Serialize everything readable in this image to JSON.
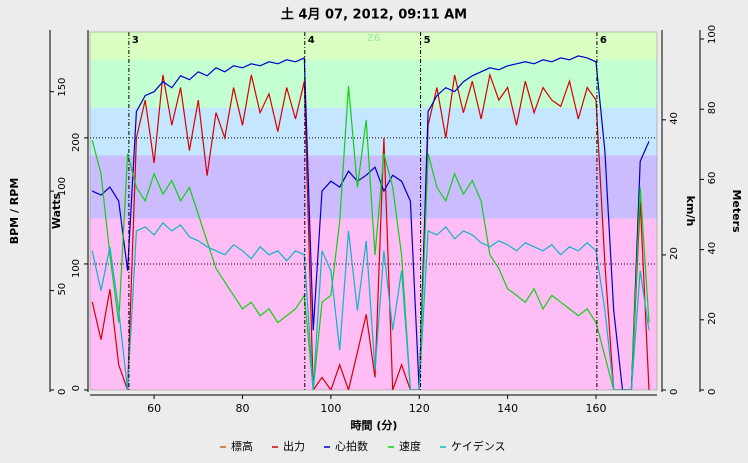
{
  "chart_data": {
    "type": "line",
    "title": "土 4月 07, 2012, 09:11 AM",
    "xlabel": "時間 (分)",
    "xlim": [
      45.5,
      173.8
    ],
    "xticks": [
      60,
      80,
      100,
      120,
      140,
      160
    ],
    "axes": [
      {
        "label": "BPM / RPM",
        "side": "left",
        "ylim": [
          0,
          180
        ],
        "yticks": [
          0,
          50,
          100,
          150
        ]
      },
      {
        "label": "Watts",
        "side": "left",
        "ylim": [
          0,
          284
        ],
        "yticks": [
          0,
          100,
          200
        ]
      },
      {
        "label": "km/h",
        "side": "right",
        "ylim": [
          0,
          53
        ],
        "yticks": [
          0,
          20,
          40
        ]
      },
      {
        "label": "Meters",
        "side": "right",
        "ylim": [
          0,
          102
        ],
        "yticks": [
          0,
          20,
          40,
          60,
          80,
          100
        ]
      }
    ],
    "zones": {
      "axis": 1,
      "label": "Z6",
      "bands": [
        {
          "from": 0,
          "to": 136,
          "color": "#ffbdf5"
        },
        {
          "from": 136,
          "to": 186,
          "color": "#cbbcff"
        },
        {
          "from": 186,
          "to": 224,
          "color": "#c4e6ff"
        },
        {
          "from": 224,
          "to": 262,
          "color": "#c4ffd2"
        },
        {
          "from": 262,
          "to": 284,
          "color": "#d9ffc2"
        }
      ]
    },
    "reference_lines": [
      {
        "axis": 1,
        "value": 100
      },
      {
        "axis": 1,
        "value": 200
      }
    ],
    "intervals": [
      {
        "label": "3",
        "x": 54.3
      },
      {
        "label": "4",
        "x": 94.1
      },
      {
        "label": "5",
        "x": 120.3
      },
      {
        "label": "6",
        "x": 160.2
      }
    ],
    "x": [
      46,
      48,
      50,
      52,
      54,
      56,
      58,
      60,
      62,
      64,
      66,
      68,
      70,
      72,
      74,
      76,
      78,
      80,
      82,
      84,
      86,
      88,
      90,
      92,
      94,
      96,
      98,
      100,
      102,
      104,
      106,
      108,
      110,
      112,
      114,
      116,
      118,
      120,
      122,
      124,
      126,
      128,
      130,
      132,
      134,
      136,
      138,
      140,
      142,
      144,
      146,
      148,
      150,
      152,
      154,
      156,
      158,
      160,
      162,
      164,
      166,
      168,
      170,
      172
    ],
    "series": [
      {
        "name": "標高",
        "color": "#c0661e",
        "axis": 3,
        "values": [
          null,
          null,
          null,
          null,
          null,
          null,
          null,
          null,
          null,
          null,
          null,
          null,
          null,
          null,
          null,
          null,
          null,
          null,
          null,
          null,
          null,
          null,
          null,
          null,
          null,
          null,
          null,
          null,
          null,
          null,
          null,
          null,
          null,
          null,
          null,
          null,
          null,
          null,
          null,
          null,
          null,
          null,
          null,
          null,
          null,
          null,
          null,
          null,
          null,
          null,
          null,
          null,
          null,
          null,
          null,
          null,
          null,
          null,
          null,
          null,
          null,
          null,
          null,
          null
        ]
      },
      {
        "name": "出力",
        "color": "#d80000",
        "axis": 1,
        "values": [
          70,
          40,
          80,
          20,
          0,
          200,
          230,
          180,
          250,
          210,
          240,
          190,
          230,
          170,
          220,
          200,
          240,
          210,
          250,
          220,
          235,
          205,
          240,
          215,
          245,
          0,
          10,
          0,
          20,
          0,
          30,
          60,
          10,
          200,
          0,
          20,
          0,
          0,
          210,
          240,
          200,
          250,
          220,
          245,
          215,
          250,
          230,
          240,
          210,
          245,
          220,
          240,
          230,
          225,
          245,
          215,
          240,
          230,
          100,
          0,
          0,
          0,
          150,
          0
        ]
      },
      {
        "name": "心拍数",
        "color": "#0000c8",
        "axis": 0,
        "values": [
          100,
          98,
          102,
          95,
          60,
          140,
          148,
          150,
          155,
          152,
          158,
          156,
          160,
          158,
          162,
          160,
          163,
          162,
          164,
          163,
          165,
          164,
          166,
          165,
          167,
          30,
          100,
          105,
          102,
          110,
          105,
          108,
          112,
          100,
          108,
          105,
          95,
          0,
          140,
          148,
          152,
          150,
          155,
          158,
          160,
          162,
          161,
          163,
          164,
          165,
          164,
          166,
          165,
          167,
          166,
          168,
          167,
          165,
          120,
          40,
          0,
          0,
          115,
          125
        ]
      },
      {
        "name": "速度",
        "color": "#10d010",
        "axis": 2,
        "values": [
          37,
          32,
          20,
          10,
          35,
          30,
          28,
          32,
          29,
          31,
          28,
          30,
          26,
          22,
          18,
          16,
          14,
          12,
          13,
          11,
          12,
          10,
          11,
          12,
          14,
          0,
          13,
          14,
          25,
          45,
          30,
          40,
          20,
          35,
          30,
          20,
          0,
          0,
          35,
          30,
          28,
          32,
          29,
          31,
          28,
          20,
          18,
          15,
          14,
          13,
          15,
          12,
          14,
          13,
          12,
          11,
          12,
          10,
          5,
          0,
          0,
          0,
          30,
          10
        ]
      },
      {
        "name": "ケイデンス",
        "color": "#10b4c8",
        "axis": 0,
        "values": [
          70,
          50,
          72,
          40,
          0,
          80,
          82,
          78,
          84,
          80,
          83,
          77,
          75,
          72,
          70,
          68,
          73,
          70,
          66,
          72,
          68,
          70,
          65,
          70,
          68,
          0,
          70,
          60,
          20,
          80,
          40,
          75,
          10,
          70,
          30,
          60,
          0,
          0,
          80,
          78,
          82,
          76,
          80,
          78,
          74,
          72,
          75,
          73,
          70,
          74,
          72,
          70,
          73,
          68,
          72,
          70,
          74,
          70,
          40,
          0,
          0,
          0,
          60,
          30
        ]
      }
    ]
  }
}
